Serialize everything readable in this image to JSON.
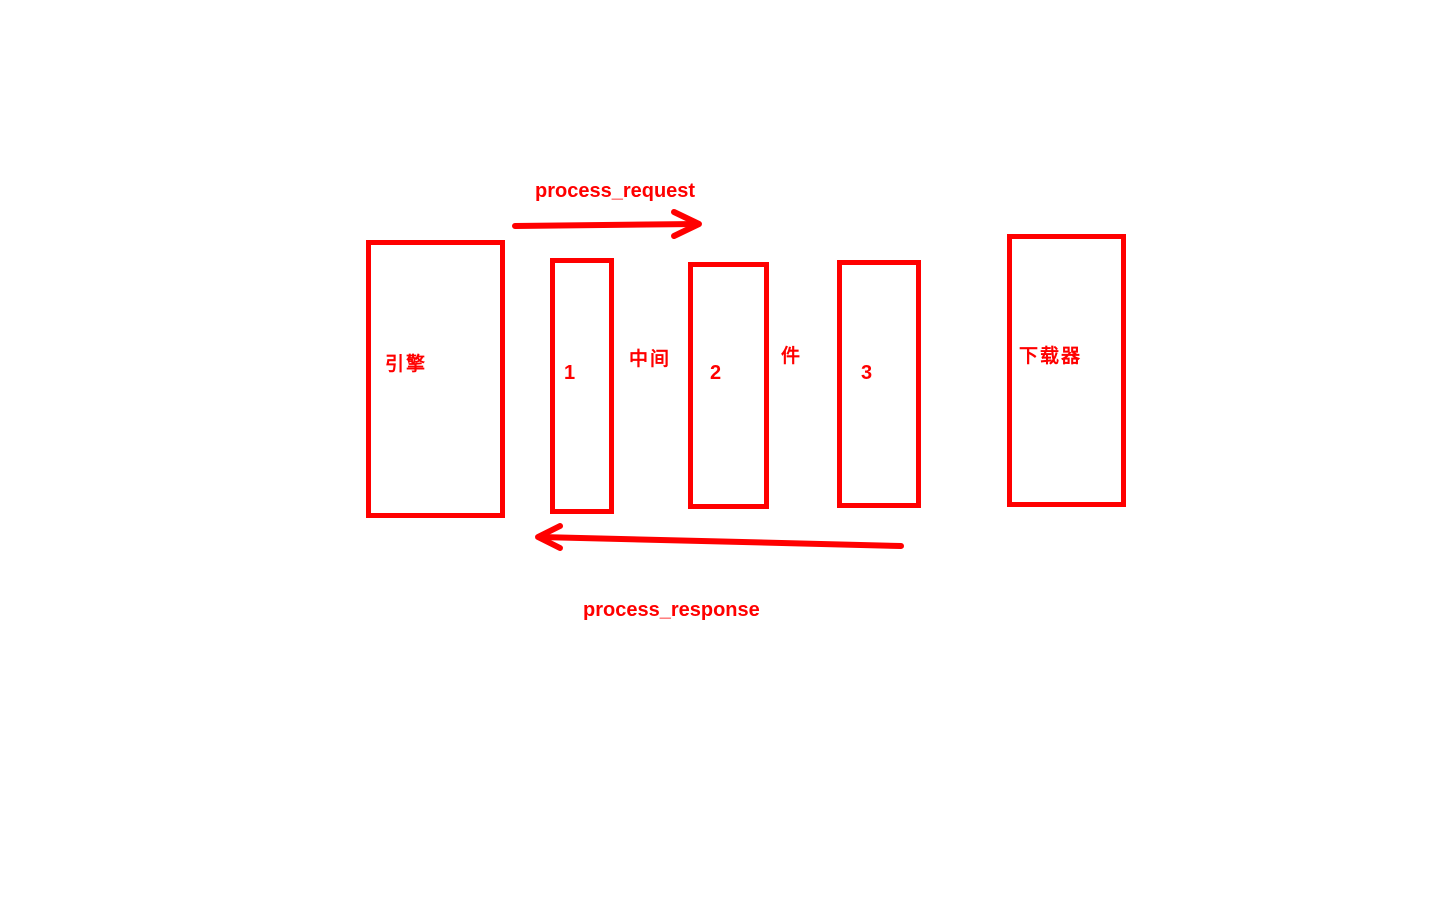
{
  "diagram": {
    "request_label": "process_request",
    "response_label": "process_response",
    "engine_label": "引擎",
    "downloader_label": "下载器",
    "middleware_word_part1": "中间",
    "middleware_word_part2": "件",
    "middleware_numbers": [
      "1",
      "2",
      "3"
    ],
    "colors": {
      "stroke": "#ff0000",
      "background": "#ffffff"
    }
  }
}
